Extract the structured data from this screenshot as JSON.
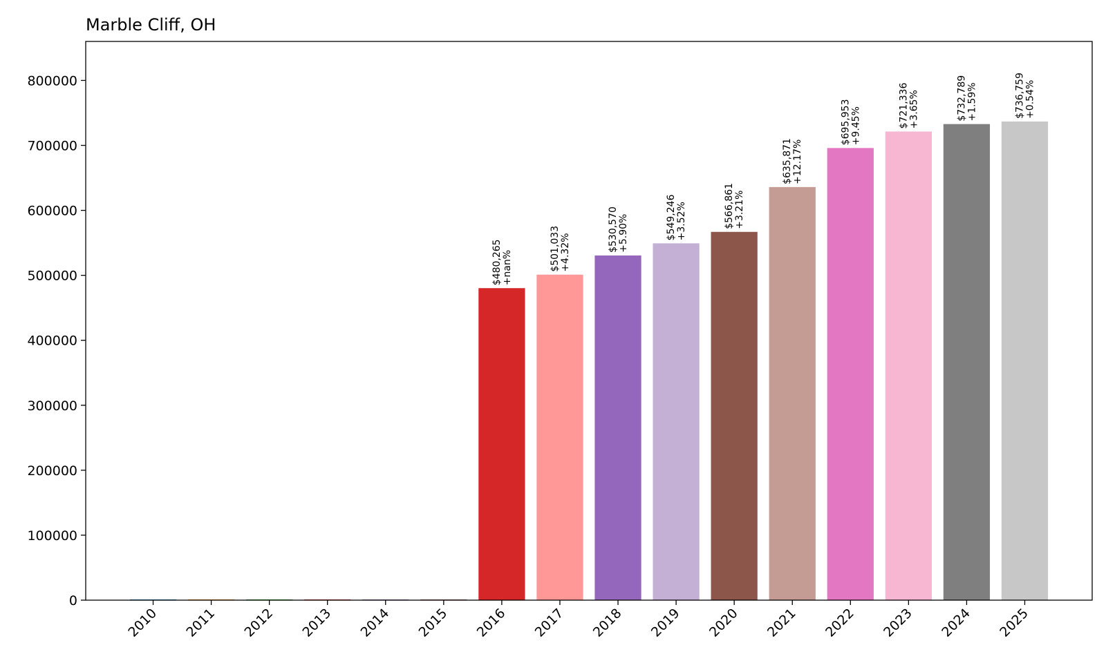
{
  "chart_data": {
    "type": "bar",
    "title": "Marble Cliff, OH",
    "xlabel": "",
    "ylabel": "",
    "categories": [
      "2010",
      "2011",
      "2012",
      "2013",
      "2014",
      "2015",
      "2016",
      "2017",
      "2018",
      "2019",
      "2020",
      "2021",
      "2022",
      "2023",
      "2024",
      "2025"
    ],
    "values": [
      0,
      0,
      0,
      0,
      0,
      0,
      480265,
      501033,
      530570,
      549246,
      566861,
      635871,
      695953,
      721336,
      732789,
      736759
    ],
    "value_labels": [
      "",
      "",
      "",
      "",
      "",
      "",
      "$480,265",
      "$501,033",
      "$530,570",
      "$549,246",
      "$566,861",
      "$635,871",
      "$695,953",
      "$721,336",
      "$732,789",
      "$736,759"
    ],
    "change_labels": [
      "",
      "",
      "",
      "",
      "",
      "",
      "+nan%",
      "+4.32%",
      "+5.90%",
      "+3.52%",
      "+3.21%",
      "+12.17%",
      "+9.45%",
      "+3.65%",
      "+1.59%",
      "+0.54%"
    ],
    "colors": [
      "#1f77b4",
      "#ff7f0e",
      "#2ca02c",
      "#d62728",
      "#9467bd",
      "#8c564b",
      "#d62728",
      "#ff9896",
      "#9467bd",
      "#c5b0d5",
      "#8c564b",
      "#c49c94",
      "#e377c2",
      "#f7b6d2",
      "#7f7f7f",
      "#c7c7c7"
    ],
    "ylim": [
      0,
      860000
    ],
    "yticks": [
      0,
      100000,
      200000,
      300000,
      400000,
      500000,
      600000,
      700000,
      800000
    ],
    "ytick_labels": [
      "0",
      "100000",
      "200000",
      "300000",
      "400000",
      "500000",
      "600000",
      "700000",
      "800000"
    ],
    "grid": false,
    "legend": "none"
  }
}
